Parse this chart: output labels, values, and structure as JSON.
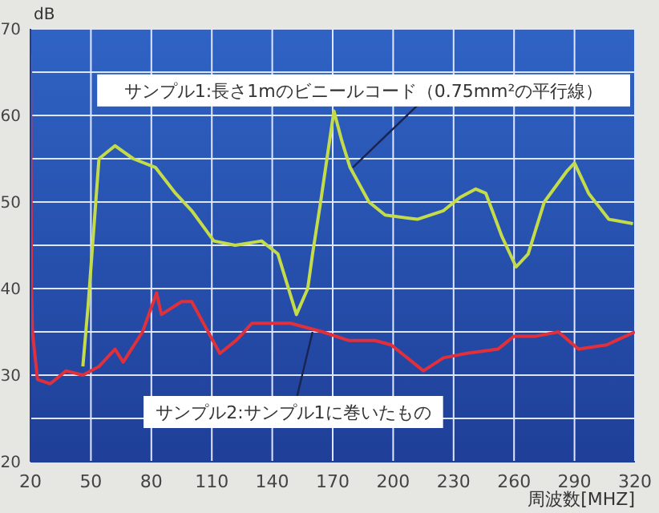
{
  "chart_data": {
    "type": "line",
    "xlabel": "周波数[MHZ]",
    "ylabel": "dB",
    "xlim": [
      20,
      320
    ],
    "xticks": [
      20,
      50,
      80,
      110,
      140,
      170,
      200,
      230,
      260,
      290,
      320
    ],
    "ylim": [
      20,
      70
    ],
    "yticks": [
      20,
      {
        "value": 25,
        "label": null
      },
      30,
      {
        "value": 35,
        "label": null
      },
      40,
      {
        "value": 45,
        "label": null
      },
      50,
      {
        "value": 55,
        "label": null
      },
      60,
      {
        "value": 65,
        "label": null
      },
      70
    ],
    "grid": true,
    "legend": false,
    "line_style": "solid",
    "annotations": [
      {
        "text": "サンプル1:長さ1mのビニールコード（0.75mm²の平行線）",
        "x": 180,
        "y": 54
      },
      {
        "text": "サンプル2:サンプル1に巻いたもの",
        "x": 160,
        "y": 35
      }
    ],
    "series": [
      {
        "color": "#c5dc4a",
        "x": [
          46,
          48.6,
          54,
          62,
          71,
          82,
          92,
          100,
          111,
          121.6,
          134.7,
          142.8,
          152,
          157.6,
          160,
          164,
          170.6,
          174.6,
          178.6,
          188,
          196,
          212,
          225,
          233,
          241,
          246,
          254,
          261,
          267,
          275,
          286,
          290,
          297,
          307,
          319
        ],
        "values": [
          31,
          38,
          55,
          56.5,
          55,
          54,
          51,
          49,
          45.5,
          45,
          45.5,
          44,
          37,
          40,
          44,
          50,
          60.5,
          57,
          54,
          50,
          48.5,
          48,
          49,
          50.5,
          51.5,
          51,
          46,
          42.5,
          44,
          50,
          53.5,
          54.5,
          51,
          48,
          47.5
        ]
      },
      {
        "color": "#e0303c",
        "x": [
          20,
          20.5,
          21,
          23.5,
          29.8,
          37.7,
          46,
          54,
          62,
          66,
          75.6,
          82.6,
          85,
          95,
          100,
          107,
          114,
          122,
          130,
          138,
          149,
          165,
          178,
          191,
          199,
          215,
          225,
          236,
          252,
          260,
          271,
          282,
          292,
          306,
          320
        ],
        "values": [
          67,
          40,
          35,
          29.5,
          29,
          30.5,
          30,
          31,
          33,
          31.5,
          35,
          39.5,
          37,
          38.5,
          38.5,
          35.5,
          32.5,
          34,
          36,
          36,
          36,
          35,
          34,
          34,
          33.5,
          30.5,
          32,
          32.5,
          33,
          34.5,
          34.5,
          35,
          33,
          33.5,
          35
        ]
      }
    ]
  }
}
